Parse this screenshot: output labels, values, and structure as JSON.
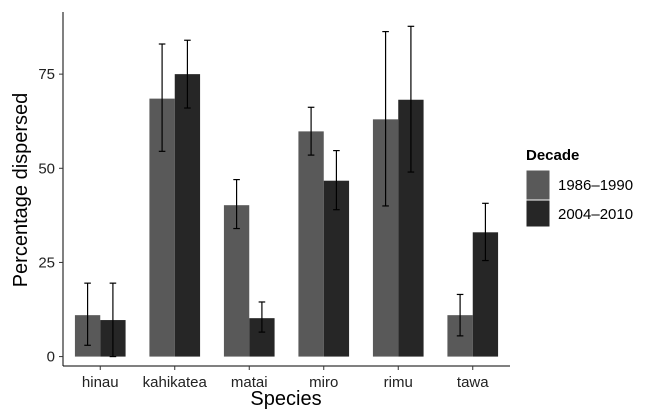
{
  "chart_data": {
    "type": "bar",
    "title": "",
    "xlabel": "Species",
    "ylabel": "Percentage dispersed",
    "categories": [
      "hinau",
      "kahikatea",
      "matai",
      "miro",
      "rimu",
      "tawa"
    ],
    "yticks": [
      0,
      25,
      50,
      75
    ],
    "ylim": [
      -2.5,
      91.5
    ],
    "grid": false,
    "legend": {
      "title": "Decade",
      "placement": "right"
    },
    "series": [
      {
        "name": "1986–1990",
        "color": "#595959",
        "values": [
          11,
          68.5,
          40.2,
          59.8,
          63,
          11
        ],
        "error_low": [
          3,
          54.5,
          34,
          53.5,
          40,
          5.5
        ],
        "error_high": [
          19.5,
          83,
          47,
          66.2,
          86.3,
          16.5
        ]
      },
      {
        "name": "2004–2010",
        "color": "#262626",
        "values": [
          9.7,
          75,
          10.2,
          46.7,
          68.2,
          33
        ],
        "error_low": [
          0,
          66,
          6.5,
          39,
          49,
          25.5
        ],
        "error_high": [
          19.5,
          84,
          14.5,
          54.7,
          87.7,
          40.7
        ]
      }
    ]
  }
}
